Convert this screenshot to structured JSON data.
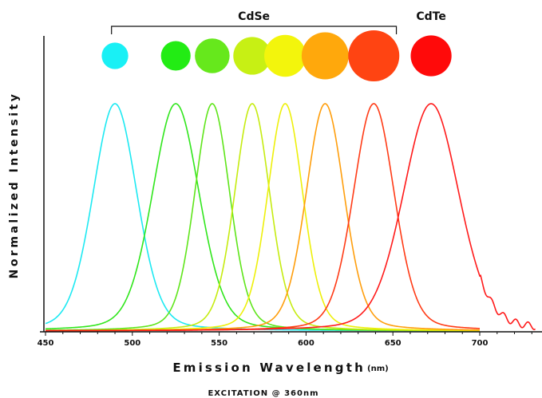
{
  "chart_data": {
    "type": "line",
    "xlabel": "Emission Wavelength",
    "xlabel_unit": "(nm)",
    "ylabel": "Normalized Intensity",
    "footnote": "EXCITATION @ 360nm",
    "xlim": [
      450,
      735
    ],
    "ylim": [
      0,
      1
    ],
    "x_ticks": [
      "450",
      "500",
      "550",
      "600",
      "650",
      "700"
    ],
    "x_tick_values": [
      450,
      500,
      550,
      600,
      650,
      700
    ],
    "groups": [
      {
        "label": "CdSe",
        "from": 488,
        "to": 652
      },
      {
        "label": "CdTe",
        "from": null,
        "to": null
      }
    ],
    "series": [
      {
        "peak": 490,
        "fwhm": 30,
        "color": "#1de9f2",
        "dot_color": "#19f0f5",
        "dot_size": 0.52
      },
      {
        "peak": 525,
        "fwhm": 32,
        "color": "#30e61c",
        "dot_color": "#22ec14",
        "dot_size": 0.58
      },
      {
        "peak": 546,
        "fwhm": 24,
        "color": "#5fe51a",
        "dot_color": "#66e81c",
        "dot_size": 0.68
      },
      {
        "peak": 569,
        "fwhm": 24,
        "color": "#c5ec10",
        "dot_color": "#c7f014",
        "dot_size": 0.74
      },
      {
        "peak": 588,
        "fwhm": 24,
        "color": "#eef00a",
        "dot_color": "#f3f50c",
        "dot_size": 0.82
      },
      {
        "peak": 611,
        "fwhm": 26,
        "color": "#ff9e0c",
        "dot_color": "#ffa80c",
        "dot_size": 0.92
      },
      {
        "peak": 639,
        "fwhm": 28,
        "color": "#ff3b16",
        "dot_color": "#ff4412",
        "dot_size": 1.0
      },
      {
        "peak": 672,
        "fwhm": 38,
        "color": "#ff1a1a",
        "dot_color": "#ff0a0a",
        "dot_size": 0.8
      }
    ]
  }
}
